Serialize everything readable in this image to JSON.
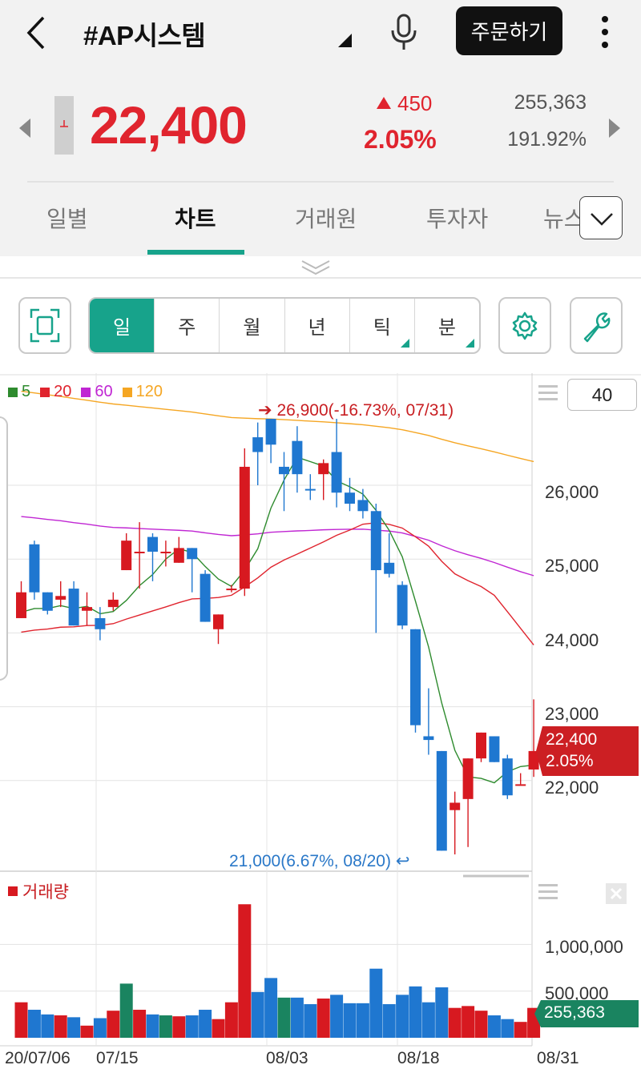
{
  "header": {
    "title": "#AP시스템",
    "order_label": "주문하기"
  },
  "quote": {
    "price": "22,400",
    "change": "450",
    "change_pct": "2.05%",
    "volume": "255,363",
    "turnover_pct": "191.92%"
  },
  "tabs": [
    {
      "label": "일별",
      "active": false
    },
    {
      "label": "차트",
      "active": true
    },
    {
      "label": "거래원",
      "active": false
    },
    {
      "label": "투자자",
      "active": false
    },
    {
      "label": "뉴스",
      "active": false
    }
  ],
  "periods": [
    {
      "label": "일",
      "active": true
    },
    {
      "label": "주",
      "active": false
    },
    {
      "label": "월",
      "active": false
    },
    {
      "label": "년",
      "active": false
    },
    {
      "label": "틱",
      "active": false
    },
    {
      "label": "분",
      "active": false
    }
  ],
  "chart": {
    "candle_count": "40",
    "legend": [
      {
        "label": "5",
        "color": "#2e8b2e"
      },
      {
        "label": "20",
        "color": "#e0242e"
      },
      {
        "label": "60",
        "color": "#c026d3"
      },
      {
        "label": "120",
        "color": "#f5a623"
      }
    ],
    "high_annotation": "26,900(-16.73%, 07/31)",
    "low_annotation": "21,000(6.67%, 08/20)",
    "current_price": "22,400",
    "current_pct": "2.05%",
    "volume_title": "거래량",
    "volume_current": "255,363",
    "y_ticks": [
      "26,000",
      "25,000",
      "24,000",
      "23,000",
      "22,000"
    ],
    "vol_ticks": [
      "1,000,000",
      "500,000"
    ],
    "x_ticks": [
      "20/07/06",
      "07/15",
      "08/03",
      "08/18",
      "08/31"
    ]
  },
  "chart_data": {
    "type": "candlestick",
    "title": "",
    "y_range": [
      20800,
      27400
    ],
    "x_tick_labels": [
      "20/07/06",
      "07/15",
      "08/03",
      "08/18",
      "08/31"
    ],
    "y_tick_labels": [
      "26,000",
      "25,000",
      "24,000",
      "23,000",
      "22,000"
    ],
    "moving_averages": [
      "5",
      "20",
      "60",
      "120"
    ],
    "candles": [
      {
        "o": 24550,
        "h": 24700,
        "l": 24200,
        "c": 24200,
        "color": "red"
      },
      {
        "o": 25200,
        "h": 25250,
        "l": 24450,
        "c": 24550,
        "color": "blue"
      },
      {
        "o": 24550,
        "h": 24550,
        "l": 24250,
        "c": 24300,
        "color": "blue"
      },
      {
        "o": 24450,
        "h": 24700,
        "l": 24350,
        "c": 24500,
        "color": "red"
      },
      {
        "o": 24600,
        "h": 24700,
        "l": 24100,
        "c": 24100,
        "color": "blue"
      },
      {
        "o": 24300,
        "h": 24550,
        "l": 24100,
        "c": 24350,
        "color": "red"
      },
      {
        "o": 24200,
        "h": 24350,
        "l": 23900,
        "c": 24050,
        "color": "blue"
      },
      {
        "o": 24350,
        "h": 24550,
        "l": 24300,
        "c": 24450,
        "color": "red"
      },
      {
        "o": 24850,
        "h": 25350,
        "l": 24850,
        "c": 25250,
        "color": "red"
      },
      {
        "o": 25100,
        "h": 25500,
        "l": 24600,
        "c": 25100,
        "color": "red"
      },
      {
        "o": 25300,
        "h": 25350,
        "l": 24700,
        "c": 25100,
        "color": "blue"
      },
      {
        "o": 25100,
        "h": 25250,
        "l": 24900,
        "c": 25100,
        "color": "red"
      },
      {
        "o": 24950,
        "h": 25300,
        "l": 24950,
        "c": 25150,
        "color": "red"
      },
      {
        "o": 25150,
        "h": 25150,
        "l": 24550,
        "c": 25000,
        "color": "blue"
      },
      {
        "o": 24800,
        "h": 24850,
        "l": 24150,
        "c": 24150,
        "color": "blue"
      },
      {
        "o": 24050,
        "h": 24250,
        "l": 23850,
        "c": 24250,
        "color": "red"
      },
      {
        "o": 24600,
        "h": 24650,
        "l": 24550,
        "c": 24600,
        "color": "red"
      },
      {
        "o": 24600,
        "h": 26500,
        "l": 24500,
        "c": 26250,
        "color": "red"
      },
      {
        "o": 26650,
        "h": 26850,
        "l": 26000,
        "c": 26450,
        "color": "blue"
      },
      {
        "o": 26550,
        "h": 26900,
        "l": 26300,
        "c": 26900,
        "color": "blue"
      },
      {
        "o": 26250,
        "h": 26450,
        "l": 25650,
        "c": 26150,
        "color": "blue"
      },
      {
        "o": 26600,
        "h": 26800,
        "l": 25900,
        "c": 26150,
        "color": "blue"
      },
      {
        "o": 25950,
        "h": 26150,
        "l": 25800,
        "c": 25950,
        "color": "blue"
      },
      {
        "o": 26300,
        "h": 26350,
        "l": 25800,
        "c": 26150,
        "color": "red"
      },
      {
        "o": 26450,
        "h": 26900,
        "l": 25700,
        "c": 25900,
        "color": "blue"
      },
      {
        "o": 25900,
        "h": 26100,
        "l": 25650,
        "c": 25750,
        "color": "blue"
      },
      {
        "o": 25800,
        "h": 25950,
        "l": 25550,
        "c": 25650,
        "color": "blue"
      },
      {
        "o": 25650,
        "h": 25750,
        "l": 24000,
        "c": 24850,
        "color": "blue"
      },
      {
        "o": 24950,
        "h": 25350,
        "l": 24750,
        "c": 24800,
        "color": "blue"
      },
      {
        "o": 24650,
        "h": 24700,
        "l": 24050,
        "c": 24100,
        "color": "blue"
      },
      {
        "o": 24050,
        "h": 24050,
        "l": 22650,
        "c": 22750,
        "color": "blue"
      },
      {
        "o": 22600,
        "h": 23250,
        "l": 22350,
        "c": 22550,
        "color": "blue"
      },
      {
        "o": 22400,
        "h": 22400,
        "l": 21050,
        "c": 21050,
        "color": "blue"
      },
      {
        "o": 21700,
        "h": 21850,
        "l": 21000,
        "c": 21600,
        "color": "red"
      },
      {
        "o": 21750,
        "h": 22300,
        "l": 21100,
        "c": 22300,
        "color": "red"
      },
      {
        "o": 22300,
        "h": 22650,
        "l": 22250,
        "c": 22650,
        "color": "red"
      },
      {
        "o": 22600,
        "h": 22600,
        "l": 22250,
        "c": 22250,
        "color": "blue"
      },
      {
        "o": 22300,
        "h": 22350,
        "l": 21750,
        "c": 21800,
        "color": "blue"
      },
      {
        "o": 21950,
        "h": 22100,
        "l": 21950,
        "c": 21950,
        "color": "red"
      },
      {
        "o": 22150,
        "h": 23100,
        "l": 22050,
        "c": 22400,
        "color": "red"
      }
    ],
    "volume": [
      380000,
      300000,
      250000,
      240000,
      220000,
      130000,
      210000,
      290000,
      580000,
      300000,
      250000,
      240000,
      230000,
      240000,
      300000,
      200000,
      380000,
      1430000,
      490000,
      640000,
      430000,
      430000,
      360000,
      420000,
      460000,
      370000,
      370000,
      740000,
      360000,
      460000,
      550000,
      380000,
      540000,
      320000,
      340000,
      290000,
      240000,
      200000,
      170000,
      320000
    ]
  }
}
